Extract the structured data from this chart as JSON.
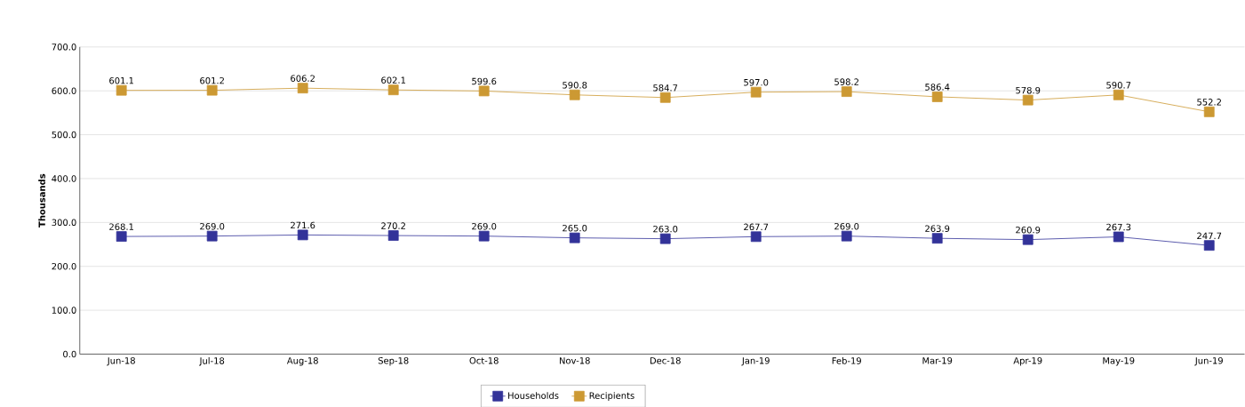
{
  "chart_data": {
    "type": "line",
    "ylabel": "Thousands",
    "categories": [
      "Jun-18",
      "Jul-18",
      "Aug-18",
      "Sep-18",
      "Oct-18",
      "Nov-18",
      "Dec-18",
      "Jan-19",
      "Feb-19",
      "Mar-19",
      "Apr-19",
      "May-19",
      "Jun-19"
    ],
    "series": [
      {
        "name": "Households",
        "color": "#333399",
        "values": [
          268.1,
          269.0,
          271.6,
          270.2,
          269.0,
          265.0,
          263.0,
          267.7,
          269.0,
          263.9,
          260.9,
          267.3,
          247.7
        ],
        "value_labels": [
          "268.1",
          "269.0",
          "271.6",
          "270.2",
          "269.0",
          "265.0",
          "263.0",
          "267.7",
          "269.0",
          "263.9",
          "260.9",
          "267.3",
          "247.7"
        ]
      },
      {
        "name": "Recipients",
        "color": "#cc9933",
        "values": [
          601.1,
          601.2,
          606.2,
          602.1,
          599.6,
          590.8,
          584.7,
          597.0,
          598.2,
          586.4,
          578.9,
          590.7,
          552.2
        ],
        "value_labels": [
          "601.1",
          "601.2",
          "606.2",
          "602.1",
          "599.6",
          "590.8",
          "584.7",
          "597.0",
          "598.2",
          "586.4",
          "578.9",
          "590.7",
          "552.2"
        ]
      }
    ],
    "ylim": [
      0,
      700
    ],
    "yticks": [
      {
        "value": 0,
        "label": "0.0"
      },
      {
        "value": 100,
        "label": "100.0"
      },
      {
        "value": 200,
        "label": "200.0"
      },
      {
        "value": 300,
        "label": "300.0"
      },
      {
        "value": 400,
        "label": "400.0"
      },
      {
        "value": 500,
        "label": "500.0"
      },
      {
        "value": 600,
        "label": "600.0"
      },
      {
        "value": 700,
        "label": "700.0"
      }
    ],
    "grid": "y",
    "legend": "bottom",
    "marker": "square",
    "line_style": "solid"
  }
}
